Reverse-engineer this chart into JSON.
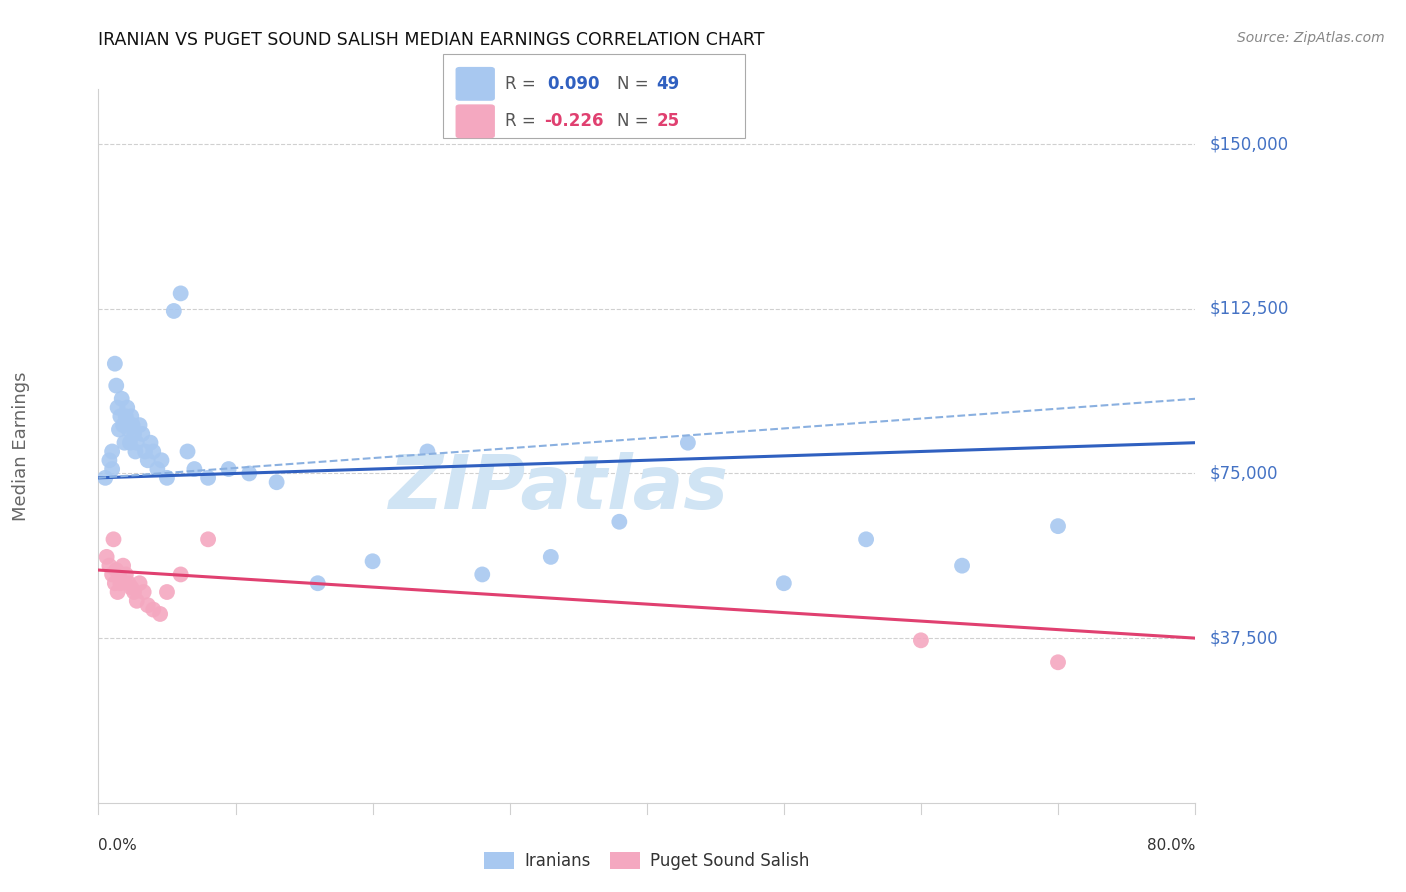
{
  "title": "IRANIAN VS PUGET SOUND SALISH MEDIAN EARNINGS CORRELATION CHART",
  "source": "Source: ZipAtlas.com",
  "ylabel": "Median Earnings",
  "yticks": [
    0,
    37500,
    75000,
    112500,
    150000
  ],
  "ytick_labels": [
    "",
    "$37,500",
    "$75,000",
    "$112,500",
    "$150,000"
  ],
  "xlim": [
    0.0,
    0.8
  ],
  "ylim": [
    0,
    162500
  ],
  "blue_color": "#a8c8f0",
  "pink_color": "#f4a8c0",
  "blue_line_color": "#3060c0",
  "pink_line_color": "#e04070",
  "dashed_line_color": "#8ab0e0",
  "grid_color": "#d0d0d0",
  "background_color": "#ffffff",
  "ytick_color": "#4472c4",
  "axis_label_color": "#666666",
  "title_color": "#111111",
  "source_color": "#888888",
  "watermark": "ZIPatlas",
  "watermark_color": "#d0e4f4",
  "blue_scatter_x": [
    0.005,
    0.008,
    0.01,
    0.01,
    0.012,
    0.013,
    0.014,
    0.015,
    0.016,
    0.017,
    0.018,
    0.019,
    0.02,
    0.021,
    0.022,
    0.023,
    0.024,
    0.025,
    0.026,
    0.027,
    0.028,
    0.03,
    0.032,
    0.034,
    0.036,
    0.038,
    0.04,
    0.043,
    0.046,
    0.05,
    0.055,
    0.06,
    0.065,
    0.07,
    0.08,
    0.095,
    0.11,
    0.13,
    0.16,
    0.2,
    0.24,
    0.28,
    0.33,
    0.38,
    0.43,
    0.5,
    0.56,
    0.63,
    0.7
  ],
  "blue_scatter_y": [
    74000,
    78000,
    76000,
    80000,
    100000,
    95000,
    90000,
    85000,
    88000,
    92000,
    86000,
    82000,
    88000,
    90000,
    85000,
    82000,
    88000,
    86000,
    84000,
    80000,
    82000,
    86000,
    84000,
    80000,
    78000,
    82000,
    80000,
    76000,
    78000,
    74000,
    112000,
    116000,
    80000,
    76000,
    74000,
    76000,
    75000,
    73000,
    50000,
    55000,
    80000,
    52000,
    56000,
    64000,
    82000,
    50000,
    60000,
    54000,
    63000
  ],
  "pink_scatter_x": [
    0.006,
    0.008,
    0.01,
    0.011,
    0.012,
    0.013,
    0.014,
    0.015,
    0.016,
    0.018,
    0.02,
    0.022,
    0.024,
    0.026,
    0.028,
    0.03,
    0.033,
    0.036,
    0.04,
    0.045,
    0.05,
    0.06,
    0.08,
    0.6,
    0.7
  ],
  "pink_scatter_y": [
    56000,
    54000,
    52000,
    60000,
    50000,
    53000,
    48000,
    52000,
    50000,
    54000,
    52000,
    50000,
    49000,
    48000,
    46000,
    50000,
    48000,
    45000,
    44000,
    43000,
    48000,
    52000,
    60000,
    37000,
    32000
  ],
  "blue_trend_x": [
    0.0,
    0.8
  ],
  "blue_trend_y": [
    74000,
    82000
  ],
  "pink_trend_x": [
    0.0,
    0.8
  ],
  "pink_trend_y": [
    53000,
    37500
  ],
  "dashed_trend_x": [
    0.0,
    0.8
  ],
  "dashed_trend_y": [
    74000,
    92000
  ],
  "legend_label_blue": "Iranians",
  "legend_label_pink": "Puget Sound Salish"
}
